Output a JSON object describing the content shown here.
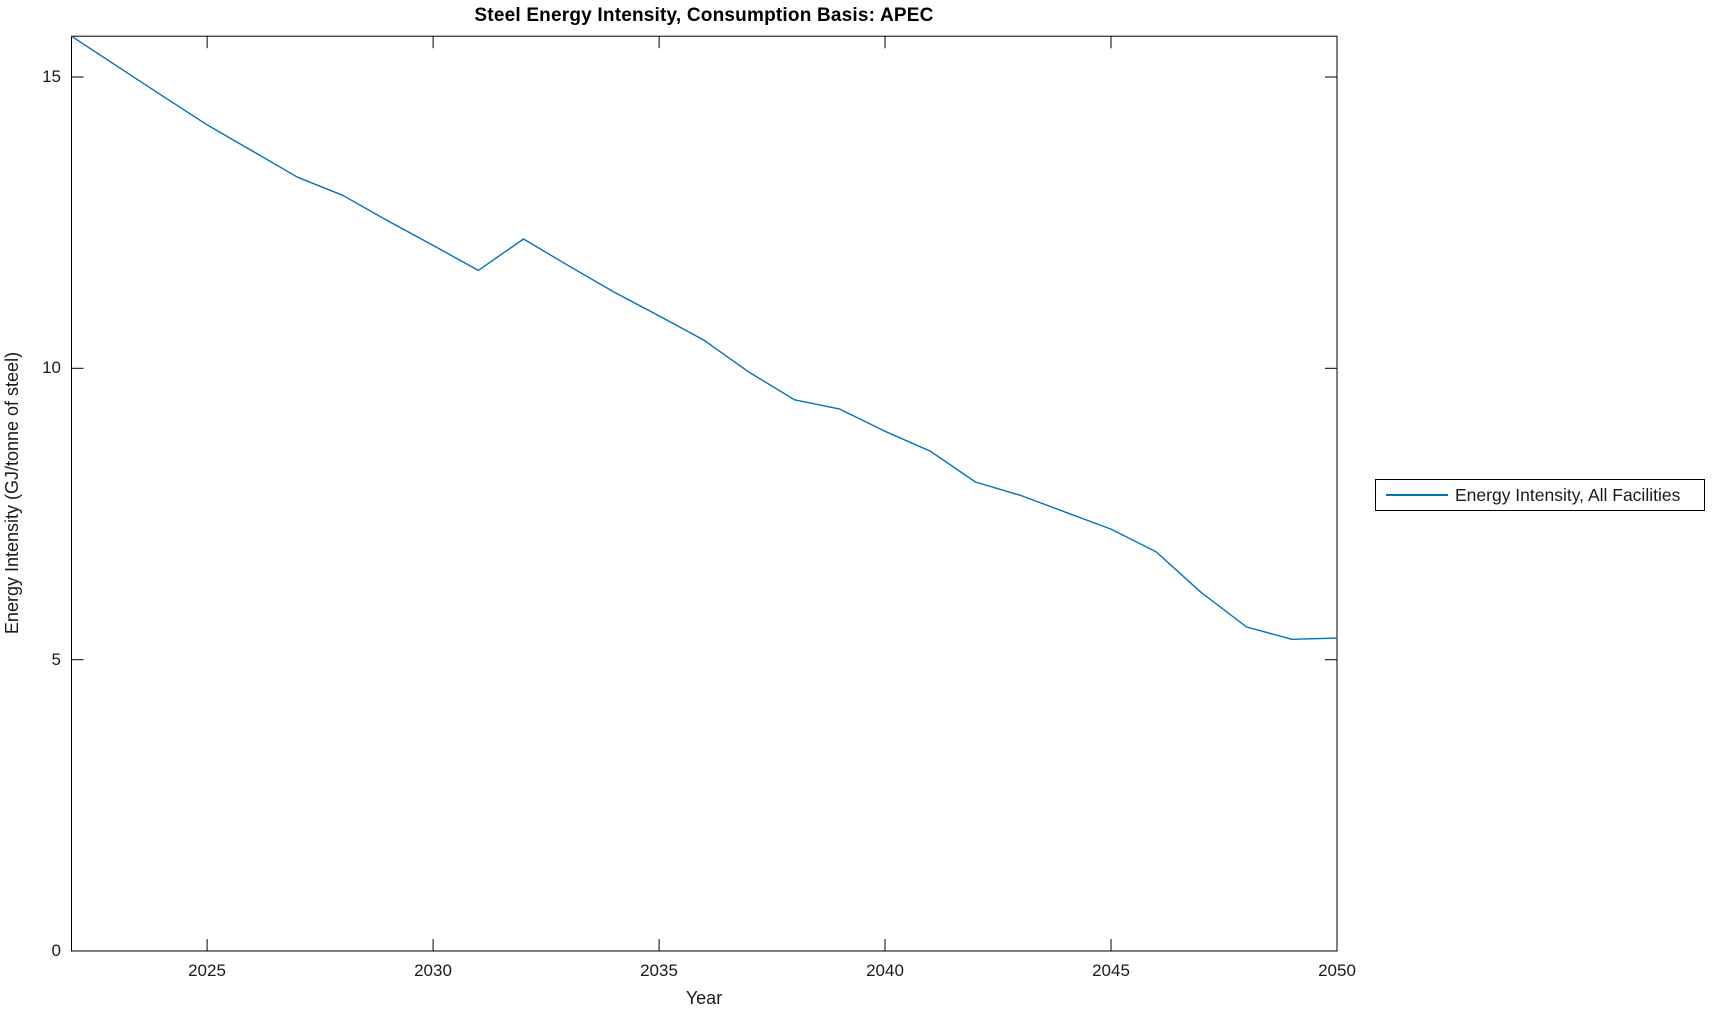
{
  "figure": {
    "title": "Steel Energy Intensity, Consumption Basis: APEC",
    "xlabel": "Year",
    "ylabel": "Energy Intensity (GJ/tonne of steel)",
    "legend": {
      "label": "Energy Intensity, All Facilities"
    },
    "colors": {
      "line": "#0072BD",
      "axis": "#000000",
      "text": "#1a1a1a",
      "background": "#ffffff"
    }
  },
  "chart_data": {
    "type": "line",
    "title": "Steel Energy Intensity, Consumption Basis: APEC",
    "xlabel": "Year",
    "ylabel": "Energy Intensity (GJ/tonne of steel)",
    "xlim": [
      2022,
      2050
    ],
    "ylim": [
      0,
      15.7
    ],
    "xticks": [
      2025,
      2030,
      2035,
      2040,
      2045,
      2050
    ],
    "yticks": [
      0,
      5,
      10,
      15
    ],
    "grid": false,
    "legend_position": "outside-right",
    "series": [
      {
        "name": "Energy Intensity, All Facilities",
        "color": "#0072BD",
        "x": [
          2022,
          2023,
          2024,
          2025,
          2026,
          2027,
          2028,
          2029,
          2030,
          2031,
          2032,
          2033,
          2034,
          2035,
          2036,
          2037,
          2038,
          2039,
          2040,
          2041,
          2042,
          2043,
          2044,
          2045,
          2046,
          2047,
          2048,
          2049,
          2050
        ],
        "y": [
          15.7,
          15.19,
          14.68,
          14.18,
          13.73,
          13.28,
          12.97,
          12.53,
          12.11,
          11.68,
          12.22,
          11.76,
          11.31,
          10.9,
          10.48,
          9.93,
          9.46,
          9.3,
          8.92,
          8.58,
          8.05,
          7.82,
          7.53,
          7.24,
          6.85,
          6.15,
          5.56,
          5.35,
          5.37
        ]
      }
    ]
  }
}
